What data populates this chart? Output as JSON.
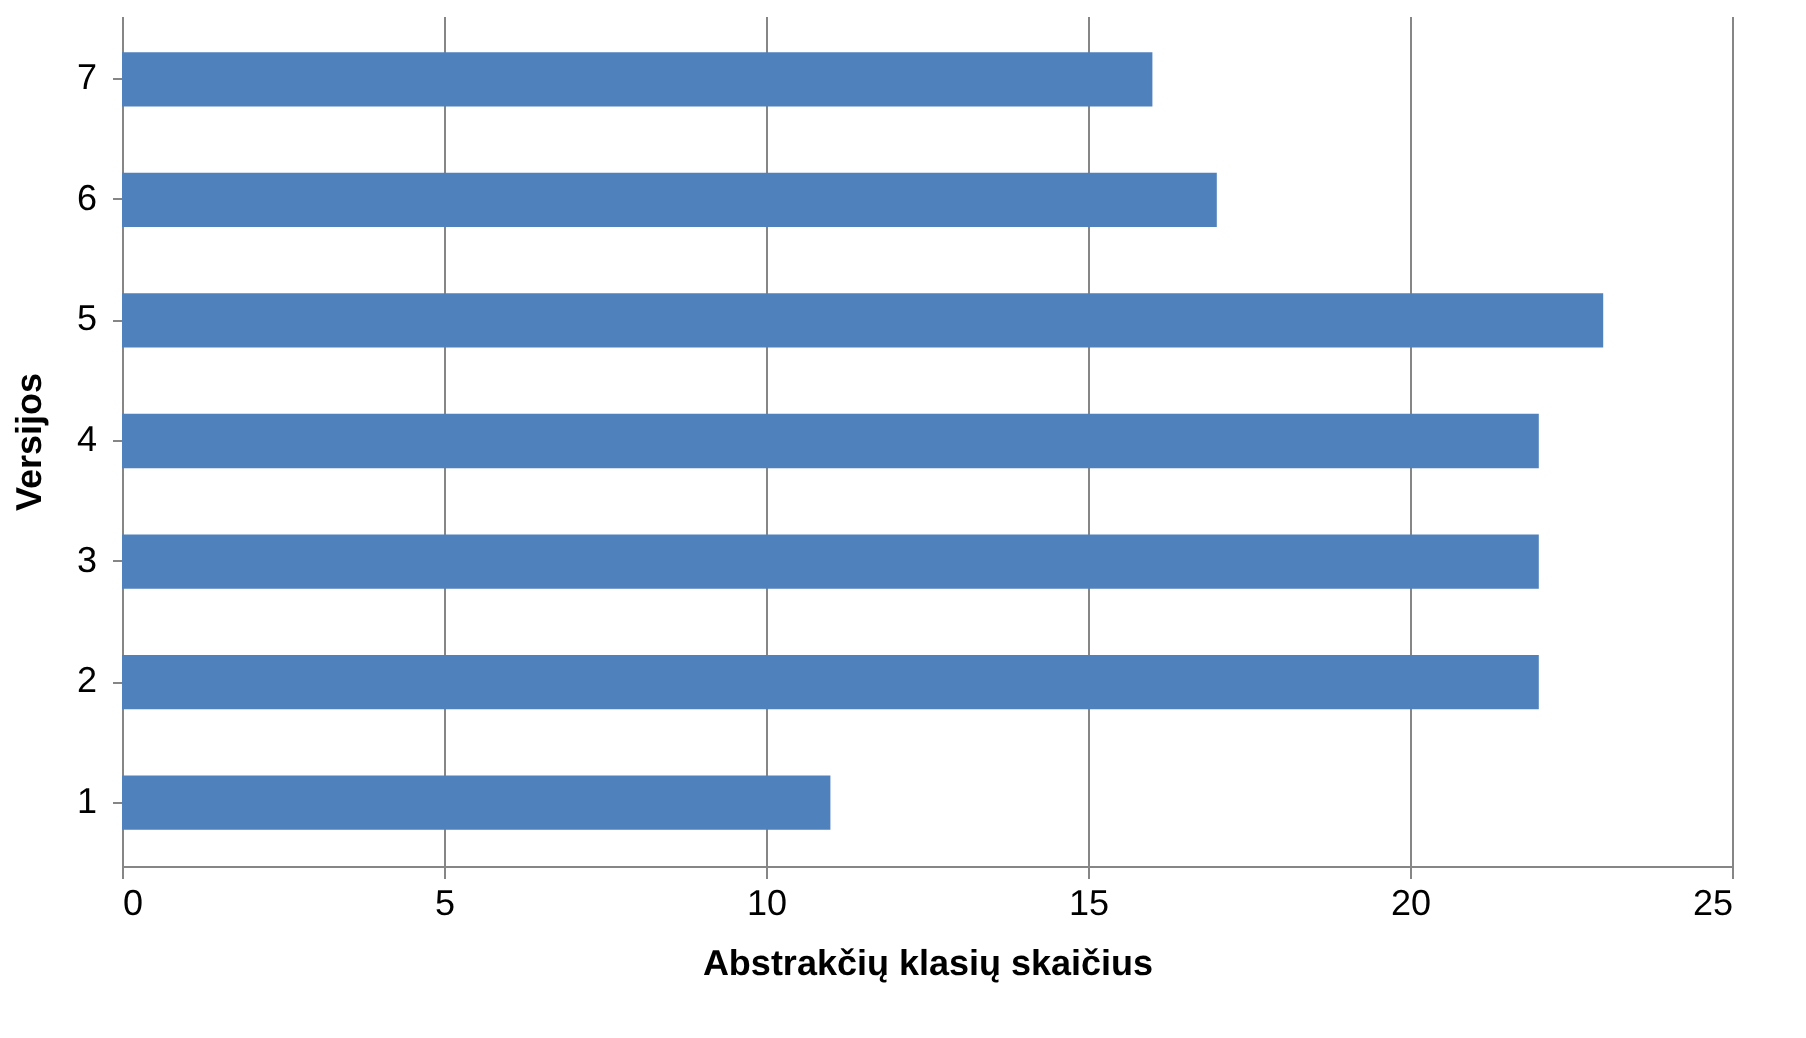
{
  "chart_data": {
    "type": "bar",
    "orientation": "horizontal",
    "xlabel": "Abstrakčių klasių skaičius",
    "ylabel": "Versijos",
    "categories": [
      "7",
      "6",
      "5",
      "4",
      "3",
      "2",
      "1"
    ],
    "values": [
      16,
      17,
      23,
      22,
      22,
      22,
      11
    ],
    "color": "#4f81bd",
    "xlim": [
      0,
      25
    ],
    "xticks": [
      0,
      5,
      10,
      15,
      20,
      25
    ],
    "grid": "x"
  }
}
